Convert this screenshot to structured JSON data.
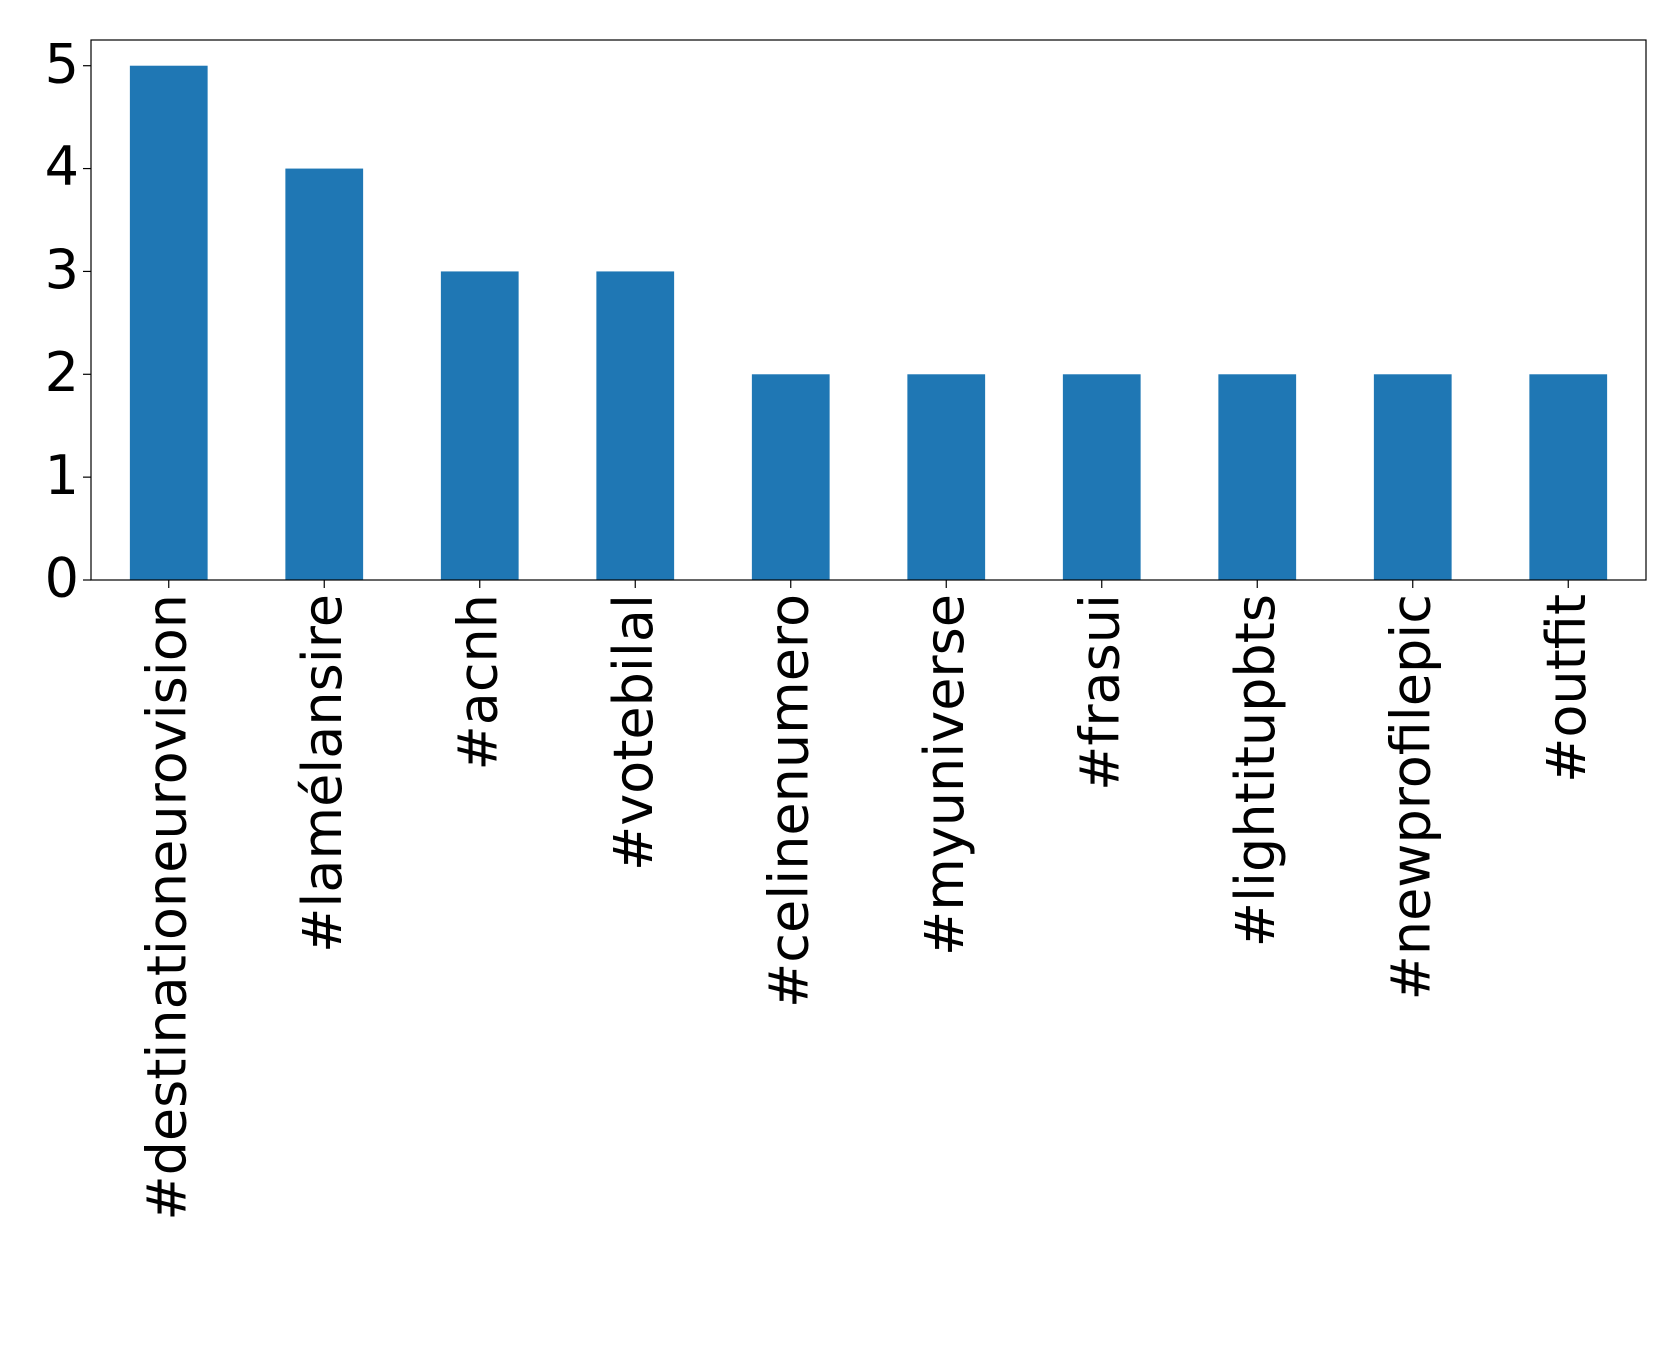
{
  "chart_data": {
    "type": "bar",
    "categories": [
      "#destinationeurovision",
      "#lamélansire",
      "#acnh",
      "#votebilal",
      "#celinenumero",
      "#myuniverse",
      "#frasui",
      "#lightitupbts",
      "#newprofilepic",
      "#outfit"
    ],
    "values": [
      5,
      4,
      3,
      3,
      2,
      2,
      2,
      2,
      2,
      2
    ],
    "color": "#1f77b4",
    "ylim": [
      0,
      5.25
    ],
    "yticks": [
      0,
      1,
      2,
      3,
      4,
      5
    ],
    "grid": false
  }
}
